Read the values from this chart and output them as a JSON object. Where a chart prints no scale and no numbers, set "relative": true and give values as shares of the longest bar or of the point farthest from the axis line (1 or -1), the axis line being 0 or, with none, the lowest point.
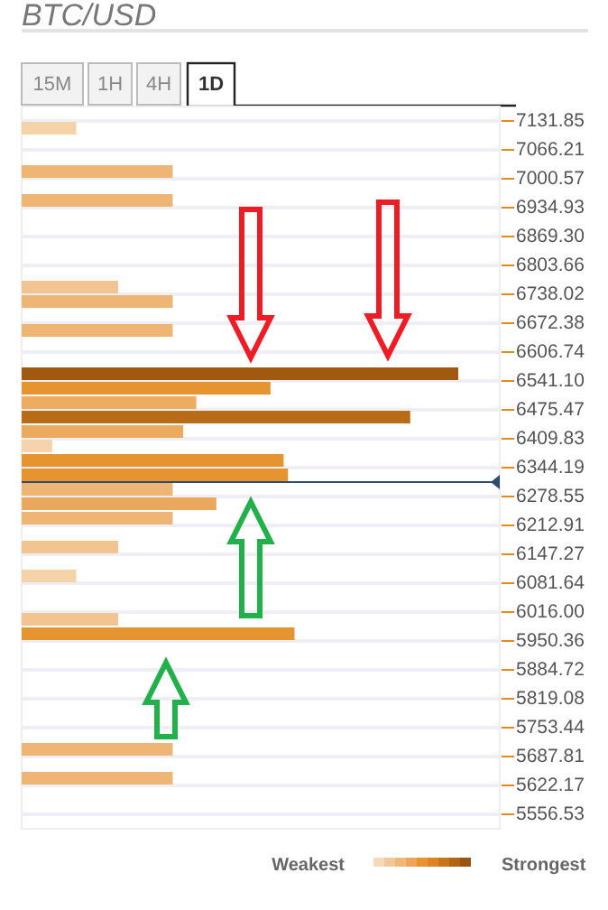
{
  "chart_data": {
    "type": "bar",
    "orientation": "horizontal",
    "relative": true,
    "title": "BTC/USD",
    "x": [
      7115.44,
      7016.98,
      6951.34,
      6754.42,
      6721.6,
      6655.96,
      6557.5,
      6524.68,
      6491.86,
      6459.04,
      6426.22,
      6393.4,
      6360.58,
      6327.76,
      6294.94,
      6262.12,
      6229.3,
      6163.66,
      6098.02,
      5999.56,
      5966.74,
      5704.18,
      5638.54
    ],
    "values": [
      0.125,
      0.346,
      0.346,
      0.221,
      0.346,
      0.346,
      1,
      0.57,
      0.4,
      0.89,
      0.37,
      0.07,
      0.6,
      0.61,
      0.346,
      0.446,
      0.346,
      0.221,
      0.125,
      0.221,
      0.625,
      0.346,
      0.346
    ],
    "colors": [
      "#f5d3a8",
      "#efb574",
      "#efb574",
      "#f2c590",
      "#efb574",
      "#efb574",
      "#a0590f",
      "#e69430",
      "#eeac60",
      "#b86c18",
      "#ecaa5e",
      "#f5d3ad",
      "#e69430",
      "#e69430",
      "#efb574",
      "#eaa85c",
      "#efb574",
      "#f2c590",
      "#f5d3a8",
      "#f2c590",
      "#e69430",
      "#efb574",
      "#efb574"
    ],
    "ylim": [
      5523.67,
      7164.67
    ],
    "yticks": [
      7131.85,
      7066.21,
      7000.57,
      6934.93,
      {
        "value": 6869.3,
        "label": "6869.30"
      },
      6803.66,
      6738.02,
      6672.38,
      6606.74,
      {
        "value": 6541.1,
        "label": "6541.10"
      },
      6475.47,
      6409.83,
      6344.19,
      6278.55,
      6212.91,
      6147.27,
      6081.64,
      {
        "value": 6016,
        "label": "6016.00"
      },
      5950.36,
      5884.72,
      5819.08,
      5753.44,
      5687.81,
      5622.17,
      5556.53
    ],
    "grid": "y",
    "ref_lines": [
      {
        "axis": "y",
        "value": 6311.35,
        "color": "#2d4b6f"
      }
    ],
    "annotations": [
      "15M",
      "1H",
      "4H",
      "1D",
      "Weakest",
      "Strongest"
    ]
  }
}
